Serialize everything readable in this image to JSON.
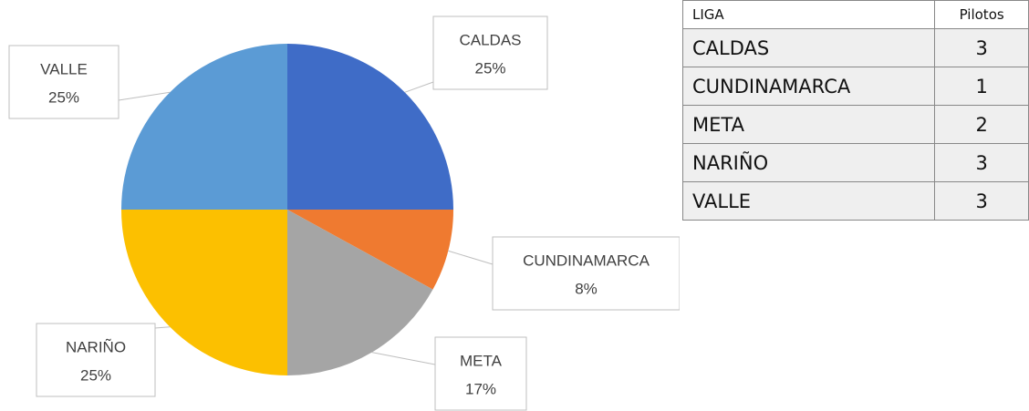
{
  "chart_data": {
    "type": "pie",
    "categories": [
      "CALDAS",
      "CUNDINAMARCA",
      "META",
      "NARIÑO",
      "VALLE"
    ],
    "values": [
      25,
      8,
      17,
      25,
      25
    ],
    "value_labels": [
      "25%",
      "8%",
      "17%",
      "25%",
      "25%"
    ],
    "colors": [
      "#3f6cc7",
      "#ef7a30",
      "#a5a5a5",
      "#fcc000",
      "#5b9bd5"
    ]
  },
  "table": {
    "header": [
      "LIGA",
      "Pilotos"
    ],
    "rows": [
      [
        "CALDAS",
        "3"
      ],
      [
        "CUNDINAMARCA",
        "1"
      ],
      [
        "META",
        "2"
      ],
      [
        "NARIÑO",
        "3"
      ],
      [
        "VALLE",
        "3"
      ]
    ]
  }
}
